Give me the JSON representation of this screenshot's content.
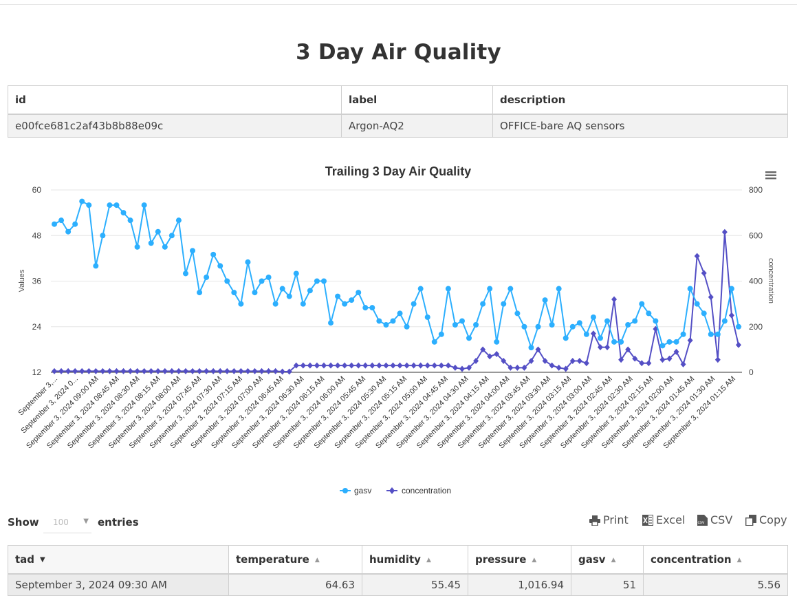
{
  "page": {
    "title": "3 Day Air Quality"
  },
  "device_table": {
    "headers": [
      "id",
      "label",
      "description"
    ],
    "row": [
      "e00fce681c2af43b8b88e09c",
      "Argon-AQ2",
      "OFFICE-bare AQ sensors"
    ]
  },
  "chart_data": {
    "type": "line",
    "title": "Trailing 3 Day Air Quality",
    "y_left_label": "Values",
    "y_right_label": "concentration",
    "ylim_left": [
      12,
      60
    ],
    "yticks_left": [
      "12",
      "24",
      "36",
      "48",
      "60"
    ],
    "ylim_right": [
      0,
      800
    ],
    "yticks_right": [
      "0",
      "200",
      "400",
      "600",
      "800"
    ],
    "x_tick_labels": [
      "September 3,...",
      "September 3, 2024 0...",
      "September 3, 2024 09:00 AM",
      "September 3, 2024 08:45 AM",
      "September 3, 2024 08:30 AM",
      "September 3, 2024 08:15 AM",
      "September 3, 2024 08:00 AM",
      "September 3, 2024 07:45 AM",
      "September 3, 2024 07:30 AM",
      "September 3, 2024 07:15 AM",
      "September 3, 2024 07:00 AM",
      "September 3, 2024 06:45 AM",
      "September 3, 2024 06:30 AM",
      "September 3, 2024 06:15 AM",
      "September 3, 2024 06:00 AM",
      "September 3, 2024 05:45 AM",
      "September 3, 2024 05:30 AM",
      "September 3, 2024 05:15 AM",
      "September 3, 2024 05:00 AM",
      "September 3, 2024 04:45 AM",
      "September 3, 2024 04:30 AM",
      "September 3, 2024 04:15 AM",
      "September 3, 2024 04:00 AM",
      "September 3, 2024 03:45 AM",
      "September 3, 2024 03:30 AM",
      "September 3, 2024 03:15 AM",
      "September 3, 2024 03:00 AM",
      "September 3, 2024 02:45 AM",
      "September 3, 2024 02:30 AM",
      "September 3, 2024 02:15 AM",
      "September 3, 2024 02:00 AM",
      "September 3, 2024 01:45 AM",
      "September 3, 2024 01:30 AM",
      "September 3, 2024 01:15 AM"
    ],
    "series": [
      {
        "name": "gasv",
        "axis": "left",
        "color": "#2caffe",
        "marker": "circle",
        "values": [
          51,
          52,
          49,
          51,
          57,
          56,
          40,
          48,
          56,
          56,
          54,
          52,
          45,
          56,
          46,
          49,
          45,
          48,
          52,
          38,
          44,
          33,
          37,
          43,
          40,
          36,
          33,
          30,
          41,
          33,
          36,
          37,
          30,
          34,
          32,
          38,
          30,
          33.5,
          36,
          36,
          25,
          32,
          30,
          31,
          33,
          29,
          29,
          25.5,
          24.5,
          25.5,
          27.5,
          24,
          30,
          34,
          26.5,
          20,
          22,
          34,
          24.5,
          25.5,
          21,
          24.5,
          30,
          34,
          20,
          30,
          34,
          27.5,
          24,
          18.5,
          24,
          31,
          24.5,
          34,
          21,
          24,
          25,
          22,
          26.5,
          21,
          25.5,
          20,
          20,
          24.5,
          25.5,
          30,
          27.5,
          25.5,
          19,
          20,
          20,
          22,
          34,
          30,
          27.5,
          22,
          22,
          25.5,
          34,
          24
        ]
      },
      {
        "name": "concentration",
        "axis": "right",
        "color": "#544fc5",
        "marker": "diamond",
        "values": [
          5,
          5,
          5,
          5,
          5,
          5,
          5,
          5,
          5,
          5,
          5,
          5,
          5,
          5,
          5,
          5,
          5,
          5,
          5,
          5,
          5,
          5,
          5,
          5,
          5,
          5,
          5,
          5,
          5,
          5,
          5,
          5,
          5,
          3,
          3,
          30,
          30,
          30,
          30,
          30,
          30,
          30,
          30,
          30,
          30,
          30,
          30,
          30,
          30,
          30,
          30,
          30,
          30,
          30,
          30,
          30,
          30,
          30,
          20,
          15,
          20,
          50,
          100,
          70,
          80,
          50,
          20,
          20,
          20,
          50,
          100,
          50,
          30,
          20,
          15,
          50,
          50,
          40,
          170,
          110,
          110,
          320,
          55,
          100,
          60,
          40,
          40,
          190,
          55,
          60,
          90,
          35,
          140,
          510,
          435,
          330,
          55,
          615,
          250,
          120
        ]
      }
    ]
  },
  "legend": {
    "items": [
      "gasv",
      "concentration"
    ]
  },
  "controls": {
    "show_label": "Show",
    "length_value": "100",
    "entries_label": "entries",
    "buttons": [
      "Print",
      "Excel",
      "CSV",
      "Copy"
    ],
    "csv_icon_text": "csv"
  },
  "data_table": {
    "headers": [
      "tad",
      "temperature",
      "humidity",
      "pressure",
      "gasv",
      "concentration"
    ],
    "rows": [
      [
        "September 3, 2024 09:30 AM",
        "64.63",
        "55.45",
        "1,016.94",
        "51",
        "5.56"
      ]
    ]
  },
  "colors": {
    "gasv": "#2caffe",
    "concentration": "#544fc5",
    "grid": "#e6e6e6"
  }
}
